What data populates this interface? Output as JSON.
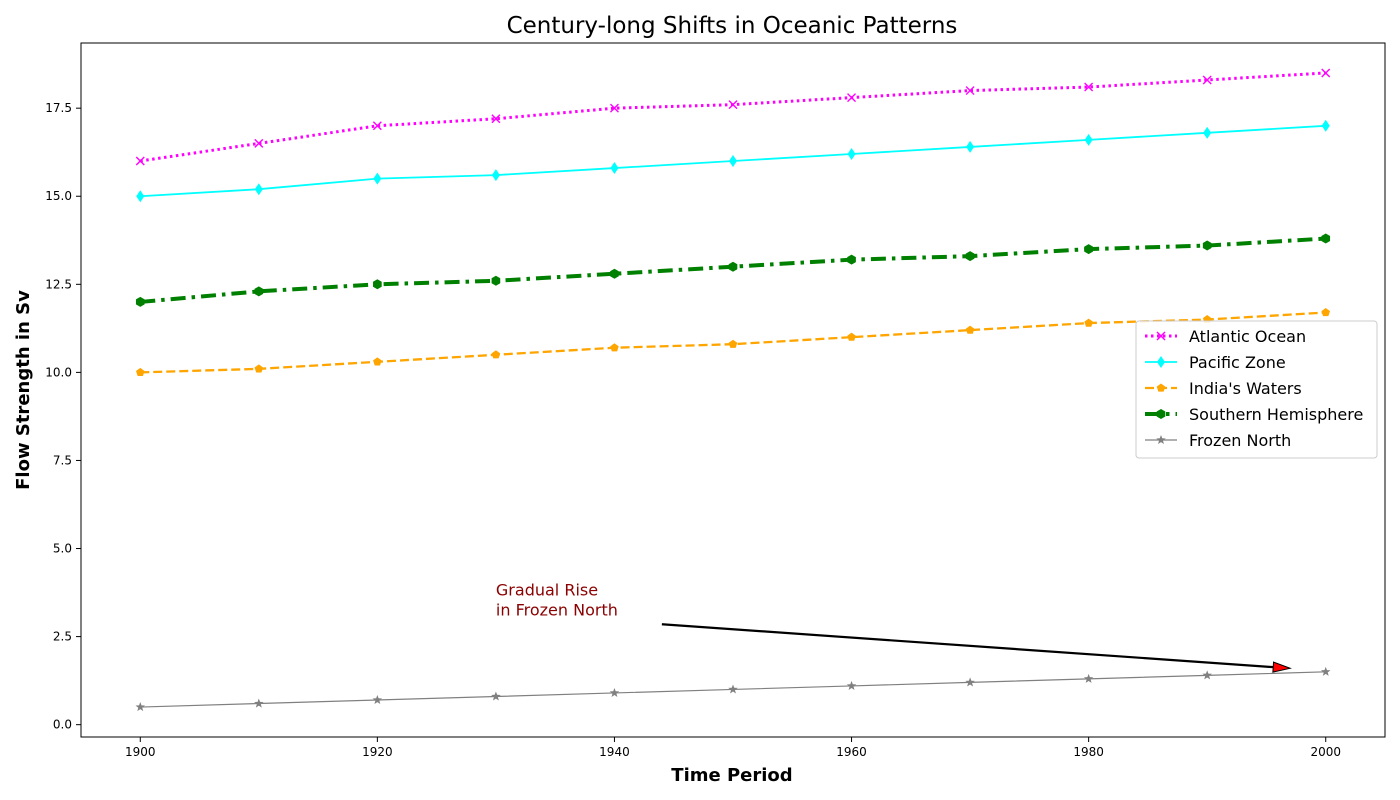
{
  "chart_data": {
    "type": "line",
    "title": "Century-long Shifts in Oceanic Patterns",
    "xlabel": "Time Period",
    "ylabel": "Flow Strength in Sv",
    "x": [
      1900,
      1910,
      1920,
      1930,
      1940,
      1950,
      1960,
      1970,
      1980,
      1990,
      2000
    ],
    "xlim": [
      1895,
      2005
    ],
    "ylim": [
      -0.35,
      19.35
    ],
    "xticks": [
      1900,
      1920,
      1940,
      1960,
      1980,
      2000
    ],
    "yticks": [
      0.0,
      2.5,
      5.0,
      7.5,
      10.0,
      12.5,
      15.0,
      17.5
    ],
    "xtick_labels": [
      "1900",
      "1920",
      "1940",
      "1960",
      "1980",
      "2000"
    ],
    "ytick_labels": [
      "0.0",
      "2.5",
      "5.0",
      "7.5",
      "10.0",
      "12.5",
      "15.0",
      "17.5"
    ],
    "grid": false,
    "legend_position": "center-right",
    "series": [
      {
        "name": "Atlantic Ocean",
        "values": [
          16.0,
          16.5,
          17.0,
          17.2,
          17.5,
          17.6,
          17.8,
          18.0,
          18.1,
          18.3,
          18.5
        ],
        "color": "#ff00ff",
        "line_style": "dotted",
        "marker": "x"
      },
      {
        "name": "Pacific Zone",
        "values": [
          15.0,
          15.2,
          15.5,
          15.6,
          15.8,
          16.0,
          16.2,
          16.4,
          16.6,
          16.8,
          17.0
        ],
        "color": "#00ffff",
        "line_style": "solid",
        "marker": "diamond"
      },
      {
        "name": "India's Waters",
        "values": [
          10.0,
          10.1,
          10.3,
          10.5,
          10.7,
          10.8,
          11.0,
          11.2,
          11.4,
          11.5,
          11.7
        ],
        "color": "#ffa500",
        "line_style": "dashed",
        "marker": "pentagon"
      },
      {
        "name": "Southern Hemisphere",
        "values": [
          12.0,
          12.3,
          12.5,
          12.6,
          12.8,
          13.0,
          13.2,
          13.3,
          13.5,
          13.6,
          13.8
        ],
        "color": "#008000",
        "line_style": "dashdot",
        "marker": "hexagon"
      },
      {
        "name": "Frozen North",
        "values": [
          0.5,
          0.6,
          0.7,
          0.8,
          0.9,
          1.0,
          1.1,
          1.2,
          1.3,
          1.4,
          1.5
        ],
        "color": "#808080",
        "line_style": "solid",
        "marker": "star"
      }
    ],
    "annotation": {
      "text_line1": "Gradual Rise",
      "text_line2": "in Frozen North",
      "text_color": "#8b0000",
      "arrow_head_color": "#ff0000",
      "text_at": [
        1930,
        3.1
      ],
      "arrow_from": [
        1944,
        2.85
      ],
      "arrow_to": [
        1997,
        1.6
      ]
    }
  }
}
